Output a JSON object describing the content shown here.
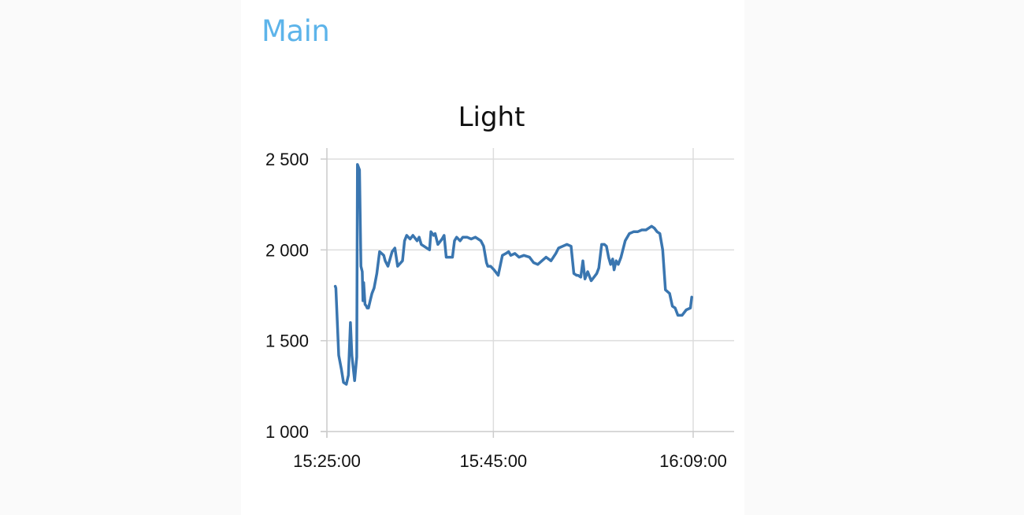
{
  "group": {
    "title": "Main"
  },
  "colors": {
    "accent": "#5db4ea",
    "series": "#3a76b0",
    "grid": "#dddddd"
  },
  "chart_data": {
    "type": "line",
    "title": "Light",
    "xlabel": "",
    "ylabel": "",
    "x_ticks": [
      "15:25:00",
      "15:45:00",
      "16:09:00"
    ],
    "y_ticks": [
      "1 000",
      "1 500",
      "2 000",
      "2 500"
    ],
    "ylim": [
      1000,
      2560
    ],
    "xlim": [
      "15:25:00",
      "16:09:00"
    ],
    "grid": true,
    "legend": "none",
    "series": [
      {
        "x": [
          "15:26:00",
          "15:26:05",
          "15:26:25",
          "15:26:45",
          "15:27:00",
          "15:27:20",
          "15:27:35",
          "15:27:50",
          "15:28:00",
          "15:28:20",
          "15:28:35",
          "15:28:40",
          "15:28:55",
          "15:29:05",
          "15:29:15",
          "15:29:20",
          "15:29:25",
          "15:29:35",
          "15:29:45",
          "15:29:50",
          "15:30:00",
          "15:30:15",
          "15:30:25",
          "15:30:40",
          "15:31:00",
          "15:31:20",
          "15:31:50",
          "15:32:00",
          "15:32:20",
          "15:32:50",
          "15:33:10",
          "15:33:30",
          "15:34:05",
          "15:34:20",
          "15:34:35",
          "15:35:00",
          "15:35:20",
          "15:35:50",
          "15:36:05",
          "15:36:20",
          "15:36:40",
          "15:37:20",
          "15:37:30",
          "15:37:50",
          "15:38:00",
          "15:38:20",
          "15:38:50",
          "15:39:05",
          "15:39:20",
          "15:39:50",
          "15:40:05",
          "15:40:20",
          "15:40:35",
          "15:41:00",
          "15:41:20",
          "15:41:35",
          "15:41:50",
          "15:42:20",
          "15:42:50",
          "15:43:10",
          "15:43:30",
          "15:43:50",
          "15:44:10",
          "15:44:20",
          "15:44:40",
          "15:45:05",
          "15:45:35",
          "15:46:05",
          "15:46:30",
          "15:46:50",
          "15:47:05",
          "15:47:35",
          "15:48:05",
          "15:48:40",
          "15:49:20",
          "15:49:50",
          "15:50:20",
          "15:50:50",
          "15:51:20",
          "15:51:55",
          "15:52:30",
          "15:52:50",
          "15:53:20",
          "15:53:50",
          "15:54:20",
          "15:54:40",
          "15:55:00",
          "15:55:10",
          "15:55:30",
          "15:55:45",
          "15:56:00",
          "15:56:20",
          "15:56:45",
          "15:57:05",
          "15:57:25",
          "15:57:40",
          "15:58:00",
          "15:58:20",
          "15:58:35",
          "15:58:50",
          "15:59:05",
          "15:59:20",
          "15:59:30",
          "15:59:45",
          "16:00:00",
          "16:00:20",
          "16:00:50",
          "16:01:20",
          "16:01:50",
          "16:02:20",
          "16:02:50",
          "16:03:20",
          "16:03:40",
          "16:04:00",
          "16:04:20",
          "16:04:40",
          "16:05:00",
          "16:05:20",
          "16:05:40",
          "16:06:10",
          "16:06:30",
          "16:06:50",
          "16:07:10",
          "16:07:40",
          "16:08:10",
          "16:08:40",
          "16:08:50"
        ],
        "y": [
          1800,
          1790,
          1420,
          1340,
          1270,
          1260,
          1310,
          1600,
          1420,
          1280,
          1410,
          2470,
          2440,
          1910,
          1880,
          1720,
          1820,
          1700,
          1690,
          1680,
          1680,
          1730,
          1760,
          1790,
          1870,
          1990,
          1970,
          1940,
          1910,
          1990,
          2010,
          1910,
          1940,
          2050,
          2080,
          2060,
          2080,
          2050,
          2070,
          2030,
          2020,
          2000,
          2100,
          2080,
          2090,
          2030,
          2060,
          2080,
          1960,
          1960,
          1960,
          2050,
          2070,
          2050,
          2070,
          2070,
          2070,
          2060,
          2070,
          2060,
          2050,
          2020,
          1930,
          1910,
          1910,
          1890,
          1860,
          1970,
          1980,
          1990,
          1970,
          1980,
          1960,
          1970,
          1960,
          1930,
          1920,
          1940,
          1960,
          1940,
          1980,
          2010,
          2020,
          2030,
          2020,
          1870,
          1860,
          1860,
          1850,
          1940,
          1840,
          1880,
          1830,
          1850,
          1870,
          1900,
          2030,
          2030,
          2020,
          1960,
          1920,
          1950,
          1890,
          1940,
          1920,
          1960,
          2050,
          2090,
          2100,
          2100,
          2110,
          2110,
          2120,
          2130,
          2120,
          2100,
          2090,
          2000,
          1780,
          1760,
          1690,
          1680,
          1640,
          1640,
          1670,
          1680,
          1740
        ]
      }
    ]
  }
}
